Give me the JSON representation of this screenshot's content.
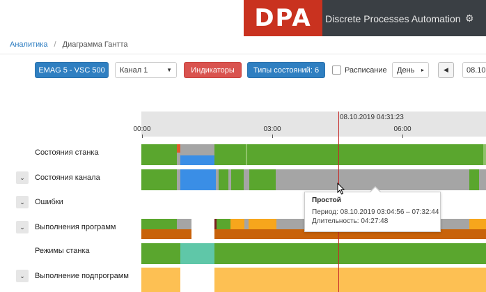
{
  "header": {
    "logo_text": "DPA",
    "brand_title": "Discrete Processes Automation",
    "settings_icon": "gear-icon"
  },
  "breadcrumb": {
    "items": [
      "Аналитика",
      "Диаграмма Гантта"
    ],
    "separator": "/"
  },
  "toolbar": {
    "machine_label": "EMAG 5 - VSC 500",
    "channel_value": "Канал 1",
    "indicators_label": "Индикаторы",
    "state_types_label": "Типы состояний: 6",
    "schedule_label": "Расписание",
    "schedule_checked": false,
    "period_value": "День",
    "date_value": "08.10."
  },
  "timeline": {
    "cursor_label": "08.10.2019 04:31:23",
    "ticks": [
      "00:00",
      "03:00",
      "06:00"
    ]
  },
  "rows": [
    {
      "label": "Состояния станка",
      "collapsible": false
    },
    {
      "label": "Состояния канала",
      "collapsible": true
    },
    {
      "label": "Ошибки",
      "collapsible": true
    },
    {
      "label": "Выполнения программ",
      "collapsible": true
    },
    {
      "label": "Режимы станка",
      "collapsible": false
    },
    {
      "label": "Выполнение подпрограмм",
      "collapsible": true
    }
  ],
  "tooltip": {
    "title": "Простой",
    "period_line": "Период: 08.10.2019 03:04:56 – 07:32:44",
    "duration_line": "Длительность: 04:27:48"
  },
  "colors": {
    "green": "#5aa62e",
    "grey": "#a5a5a5",
    "blue": "#3a8ee6",
    "orange": "#f7a61c",
    "dark_orange": "#c8620a",
    "teal": "#5fc7a8",
    "red_accent": "#e05a2a",
    "light_orange": "#fdc053"
  }
}
